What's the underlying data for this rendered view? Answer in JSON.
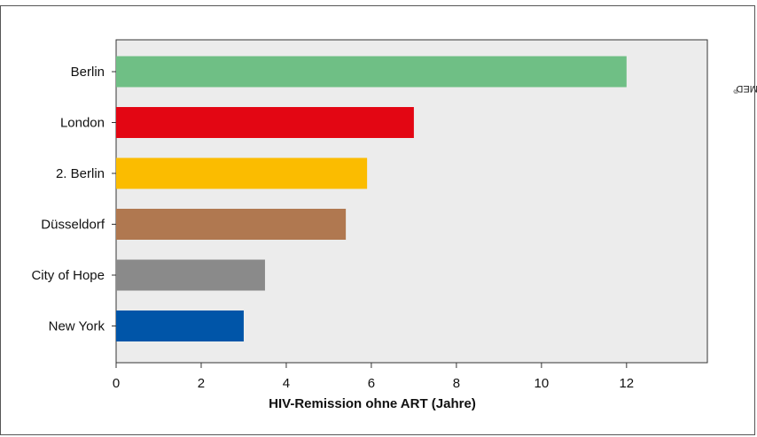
{
  "copyright": "© UNIVERSIMED",
  "copyright_mark": "®",
  "chart_data": {
    "type": "bar",
    "orientation": "horizontal",
    "categories": [
      "Berlin",
      "London",
      "2. Berlin",
      "Düsseldorf",
      "City of Hope",
      "New York"
    ],
    "values": [
      12,
      7,
      5.9,
      5.4,
      3.5,
      3
    ],
    "colors": [
      "#6fbf85",
      "#e30613",
      "#fbbc00",
      "#b07850",
      "#8a8a8a",
      "#0055a8"
    ],
    "xlabel": "HIV-Remission ohne ART (Jahre)",
    "xlim": [
      0,
      13.9
    ],
    "xticks": [
      "0",
      "2",
      "4",
      "6",
      "8",
      "10",
      "12"
    ],
    "plot_background": "#ececec",
    "grid": false
  }
}
